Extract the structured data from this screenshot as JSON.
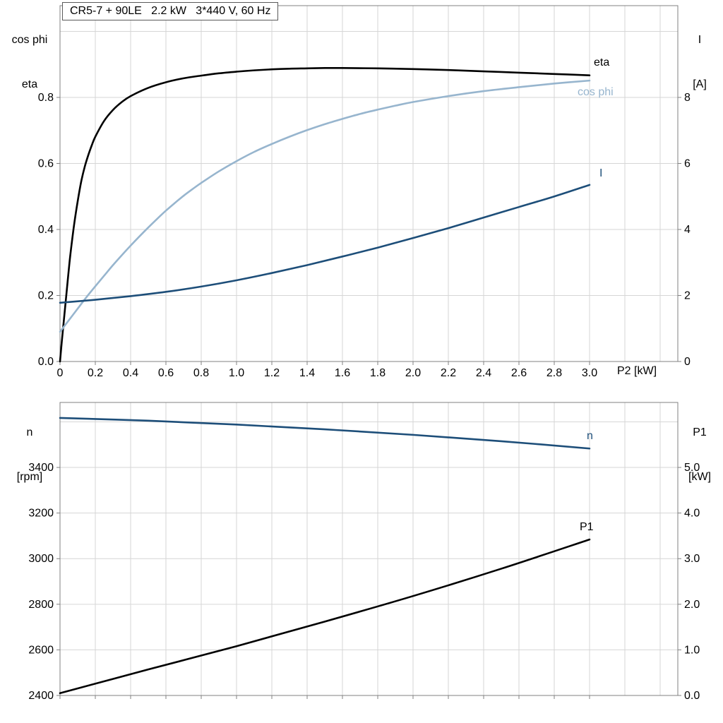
{
  "title_box": "CR5-7 + 90LE   2.2 kW   3*440 V, 60 Hz",
  "colors": {
    "black": "#000000",
    "dark_blue": "#1d4e79",
    "light_blue": "#97b5ce",
    "grid": "#d6d6d6",
    "frame": "#808080",
    "text": "#000000"
  },
  "chart_data": [
    {
      "type": "line",
      "title": "CR5-7 + 90LE   2.2 kW   3*440 V, 60 Hz",
      "x_label": "P2 [kW]",
      "x_axis": {
        "min": 0,
        "max": 3.5,
        "tick_values": [
          0,
          0.2,
          0.4,
          0.6,
          0.8,
          1.0,
          1.2,
          1.4,
          1.6,
          1.8,
          2.0,
          2.2,
          2.4,
          2.6,
          2.8,
          3.0
        ],
        "tick_labels": [
          "0",
          "0.2",
          "0.4",
          "0.6",
          "0.8",
          "1.0",
          "1.2",
          "1.4",
          "1.6",
          "1.8",
          "2.0",
          "2.2",
          "2.4",
          "2.6",
          "2.8",
          "3.0"
        ],
        "grid_extra": [
          3.2,
          3.4
        ]
      },
      "left_axis": {
        "label_lines": [
          "cos phi",
          "eta"
        ],
        "min": 0,
        "max": 1.078,
        "tick_values": [
          0,
          0.2,
          0.4,
          0.6,
          0.8
        ],
        "tick_labels": [
          "0.0",
          "0.2",
          "0.4",
          "0.6",
          "0.8"
        ],
        "grid_extra": [
          1.0
        ]
      },
      "right_axis": {
        "label_lines": [
          "I",
          "[A]"
        ],
        "min": 0,
        "max": 10.78,
        "tick_values": [
          0,
          2,
          4,
          6,
          8
        ],
        "tick_labels": [
          "0",
          "2",
          "4",
          "6",
          "8"
        ]
      },
      "series": [
        {
          "name": "eta",
          "axis": "left",
          "color": "#000000",
          "points": [
            [
              0,
              0
            ],
            [
              0.01,
              0.06
            ],
            [
              0.02,
              0.115
            ],
            [
              0.03,
              0.17
            ],
            [
              0.04,
              0.225
            ],
            [
              0.05,
              0.28
            ],
            [
              0.06,
              0.33
            ],
            [
              0.08,
              0.415
            ],
            [
              0.1,
              0.485
            ],
            [
              0.12,
              0.545
            ],
            [
              0.14,
              0.59
            ],
            [
              0.16,
              0.625
            ],
            [
              0.18,
              0.655
            ],
            [
              0.2,
              0.681
            ],
            [
              0.25,
              0.729
            ],
            [
              0.3,
              0.762
            ],
            [
              0.35,
              0.786
            ],
            [
              0.4,
              0.804
            ],
            [
              0.5,
              0.829
            ],
            [
              0.6,
              0.846
            ],
            [
              0.7,
              0.858
            ],
            [
              0.8,
              0.866
            ],
            [
              0.9,
              0.873
            ],
            [
              1.0,
              0.878
            ],
            [
              1.1,
              0.882
            ],
            [
              1.2,
              0.885
            ],
            [
              1.3,
              0.887
            ],
            [
              1.4,
              0.888
            ],
            [
              1.5,
              0.889
            ],
            [
              1.6,
              0.889
            ],
            [
              1.8,
              0.888
            ],
            [
              2.0,
              0.886
            ],
            [
              2.2,
              0.883
            ],
            [
              2.4,
              0.879
            ],
            [
              2.6,
              0.875
            ],
            [
              2.8,
              0.871
            ],
            [
              3.0,
              0.867
            ]
          ]
        },
        {
          "name": "cos phi",
          "axis": "left",
          "color": "#97b5ce",
          "points": [
            [
              0,
              0.09
            ],
            [
              0.05,
              0.125
            ],
            [
              0.1,
              0.16
            ],
            [
              0.15,
              0.195
            ],
            [
              0.2,
              0.228
            ],
            [
              0.25,
              0.26
            ],
            [
              0.3,
              0.292
            ],
            [
              0.35,
              0.322
            ],
            [
              0.4,
              0.351
            ],
            [
              0.45,
              0.379
            ],
            [
              0.5,
              0.406
            ],
            [
              0.55,
              0.432
            ],
            [
              0.6,
              0.457
            ],
            [
              0.65,
              0.48
            ],
            [
              0.7,
              0.502
            ],
            [
              0.75,
              0.522
            ],
            [
              0.8,
              0.541
            ],
            [
              0.9,
              0.576
            ],
            [
              1.0,
              0.607
            ],
            [
              1.1,
              0.635
            ],
            [
              1.2,
              0.659
            ],
            [
              1.3,
              0.681
            ],
            [
              1.4,
              0.701
            ],
            [
              1.5,
              0.719
            ],
            [
              1.6,
              0.735
            ],
            [
              1.7,
              0.75
            ],
            [
              1.8,
              0.763
            ],
            [
              1.9,
              0.775
            ],
            [
              2.0,
              0.786
            ],
            [
              2.2,
              0.804
            ],
            [
              2.4,
              0.819
            ],
            [
              2.6,
              0.831
            ],
            [
              2.8,
              0.842
            ],
            [
              3.0,
              0.851
            ]
          ]
        },
        {
          "name": "I",
          "axis": "right",
          "color": "#1d4e79",
          "points": [
            [
              0,
              1.78
            ],
            [
              0.2,
              1.87
            ],
            [
              0.4,
              1.98
            ],
            [
              0.6,
              2.11
            ],
            [
              0.8,
              2.27
            ],
            [
              1.0,
              2.46
            ],
            [
              1.2,
              2.68
            ],
            [
              1.4,
              2.92
            ],
            [
              1.6,
              3.18
            ],
            [
              1.8,
              3.45
            ],
            [
              2.0,
              3.74
            ],
            [
              2.2,
              4.04
            ],
            [
              2.4,
              4.36
            ],
            [
              2.6,
              4.68
            ],
            [
              2.8,
              5.0
            ],
            [
              3.0,
              5.35
            ]
          ]
        }
      ]
    },
    {
      "type": "line",
      "title": "",
      "x_label": "",
      "x_axis": {
        "min": 0,
        "max": 3.5,
        "tick_values": [
          0,
          0.2,
          0.4,
          0.6,
          0.8,
          1.0,
          1.2,
          1.4,
          1.6,
          1.8,
          2.0,
          2.2,
          2.4,
          2.6,
          2.8,
          3.0
        ],
        "tick_labels": [],
        "grid_extra": [
          3.2,
          3.4
        ]
      },
      "left_axis": {
        "label_lines": [
          "n",
          "[rpm]"
        ],
        "min": 2400,
        "max": 3685,
        "tick_values": [
          2400,
          2600,
          2800,
          3000,
          3200,
          3400
        ],
        "tick_labels": [
          "2400",
          "2600",
          "2800",
          "3000",
          "3200",
          "3400"
        ],
        "grid_extra": [
          3600
        ]
      },
      "right_axis": {
        "label_lines": [
          "P1",
          "[kW]"
        ],
        "min": 0,
        "max": 6.425,
        "tick_values": [
          0,
          1,
          2,
          3,
          4,
          5
        ],
        "tick_labels": [
          "0.0",
          "1.0",
          "2.0",
          "3.0",
          "4.0",
          "5.0"
        ]
      },
      "series": [
        {
          "name": "n",
          "axis": "left",
          "color": "#1d4e79",
          "points": [
            [
              0,
              3617
            ],
            [
              0.5,
              3605
            ],
            [
              1.0,
              3588
            ],
            [
              1.5,
              3567
            ],
            [
              2.0,
              3543
            ],
            [
              2.5,
              3515
            ],
            [
              3.0,
              3483
            ]
          ]
        },
        {
          "name": "P1",
          "axis": "right",
          "color": "#000000",
          "points": [
            [
              0,
              0.05
            ],
            [
              0.5,
              0.57
            ],
            [
              1.0,
              1.08
            ],
            [
              1.5,
              1.62
            ],
            [
              2.0,
              2.18
            ],
            [
              2.5,
              2.78
            ],
            [
              3.0,
              3.42
            ]
          ]
        }
      ]
    }
  ]
}
